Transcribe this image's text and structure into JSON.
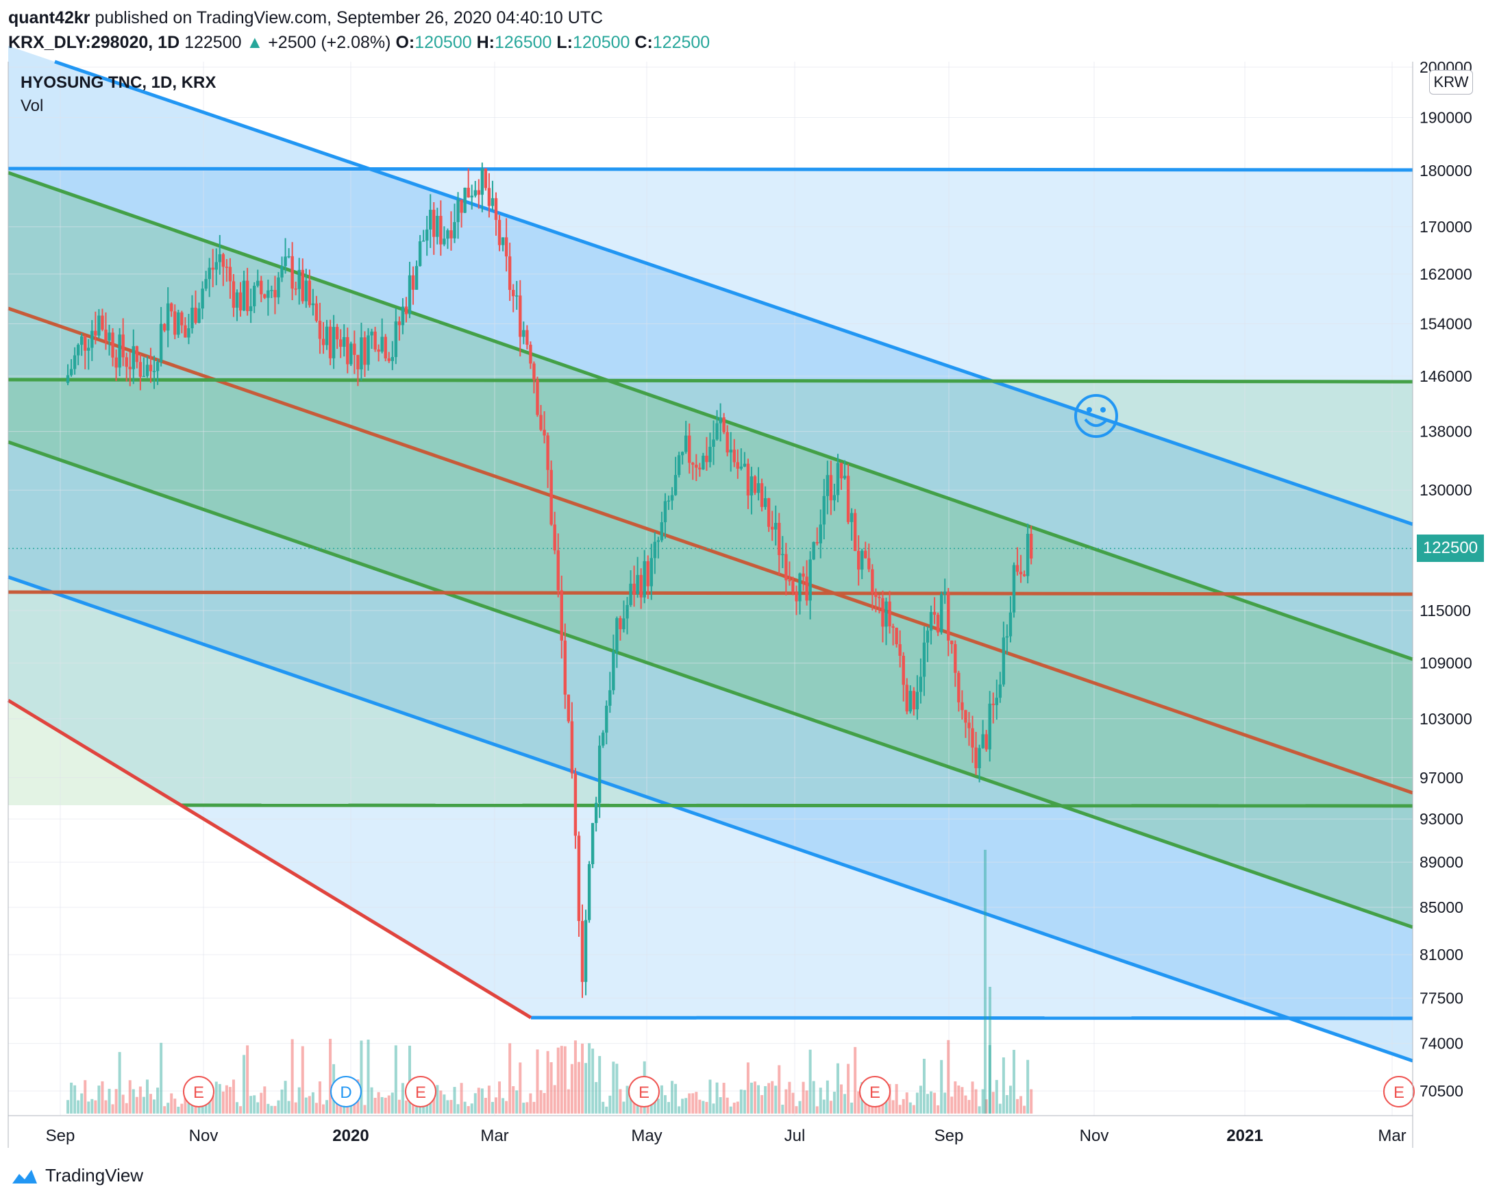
{
  "header": {
    "publisher": "quant42kr",
    "published_text": "published on TradingView.com, September 26, 2020 04:40:10 UTC",
    "symbol": "KRX_DLY:298020, 1D",
    "last": "122500",
    "change_arrow": "▲",
    "change": "+2500 (+2.08%)",
    "o_label": "O:",
    "o": "120500",
    "h_label": "H:",
    "h": "126500",
    "l_label": "L:",
    "l": "120500",
    "c_label": "C:",
    "c": "122500"
  },
  "legend": {
    "title": "HYOSUNG TNC, 1D, KRX",
    "indicator": "Vol"
  },
  "currency": "KRW",
  "last_price_tag": "122500",
  "footer": {
    "brand": "TradingView"
  },
  "colors": {
    "blue_line": "#2196f3",
    "green_line": "#43a047",
    "orange_line": "#c75b39",
    "red_line": "#e0443e",
    "up": "#26a69a",
    "down": "#ef5350"
  },
  "chart_data": {
    "type": "candlestick",
    "title": "HYOSUNG TNC, 1D, KRX",
    "y_scale": "log",
    "ylim": [
      68500,
      200000
    ],
    "y_ticks": [
      "200000",
      "190000",
      "180000",
      "170000",
      "162000",
      "154000",
      "146000",
      "138000",
      "130000",
      "122500",
      "115000",
      "109000",
      "103000",
      "97000",
      "93000",
      "89000",
      "85000",
      "81000",
      "77500",
      "74000",
      "70500"
    ],
    "x_ticks": [
      "Sep",
      "Nov",
      "2020",
      "Mar",
      "May",
      "Jul",
      "Sep",
      "Nov",
      "2021",
      "Mar"
    ],
    "x_tick_bold": [
      false,
      false,
      true,
      false,
      false,
      false,
      false,
      false,
      true,
      false
    ],
    "price_path": [
      [
        "2019-08-26",
        145000
      ],
      [
        "2019-09-02",
        151000
      ],
      [
        "2019-09-09",
        155000
      ],
      [
        "2019-09-16",
        150000
      ],
      [
        "2019-09-23",
        148000
      ],
      [
        "2019-09-30",
        147000
      ],
      [
        "2019-10-07",
        157000
      ],
      [
        "2019-10-14",
        152000
      ],
      [
        "2019-10-21",
        160000
      ],
      [
        "2019-10-28",
        165000
      ],
      [
        "2019-11-04",
        158000
      ],
      [
        "2019-11-11",
        158000
      ],
      [
        "2019-11-18",
        160000
      ],
      [
        "2019-11-25",
        163000
      ],
      [
        "2019-12-02",
        158000
      ],
      [
        "2019-12-09",
        151000
      ],
      [
        "2019-12-16",
        152000
      ],
      [
        "2019-12-23",
        149000
      ],
      [
        "2019-12-30",
        153000
      ],
      [
        "2020-01-06",
        150000
      ],
      [
        "2020-01-13",
        160000
      ],
      [
        "2020-01-20",
        170000
      ],
      [
        "2020-01-27",
        169000
      ],
      [
        "2020-02-03",
        175000
      ],
      [
        "2020-02-10",
        179000
      ],
      [
        "2020-02-17",
        170000
      ],
      [
        "2020-02-24",
        158000
      ],
      [
        "2020-03-02",
        150000
      ],
      [
        "2020-03-09",
        132000
      ],
      [
        "2020-03-16",
        106000
      ],
      [
        "2020-03-23",
        80000
      ],
      [
        "2020-03-30",
        100000
      ],
      [
        "2020-04-06",
        112000
      ],
      [
        "2020-04-13",
        118000
      ],
      [
        "2020-04-20",
        120000
      ],
      [
        "2020-04-27",
        128000
      ],
      [
        "2020-05-04",
        135000
      ],
      [
        "2020-05-11",
        134000
      ],
      [
        "2020-05-18",
        139000
      ],
      [
        "2020-05-25",
        133000
      ],
      [
        "2020-06-01",
        130000
      ],
      [
        "2020-06-08",
        125000
      ],
      [
        "2020-06-15",
        120000
      ],
      [
        "2020-06-22",
        116000
      ],
      [
        "2020-06-29",
        130000
      ],
      [
        "2020-07-06",
        132000
      ],
      [
        "2020-07-13",
        121000
      ],
      [
        "2020-07-20",
        116000
      ],
      [
        "2020-07-27",
        113000
      ],
      [
        "2020-08-03",
        104000
      ],
      [
        "2020-08-10",
        112000
      ],
      [
        "2020-08-17",
        116000
      ],
      [
        "2020-08-24",
        102000
      ],
      [
        "2020-08-31",
        99000
      ],
      [
        "2020-09-07",
        105000
      ],
      [
        "2020-09-14",
        120000
      ],
      [
        "2020-09-21",
        122500
      ]
    ],
    "volume_markers": [
      {
        "label": "E",
        "date": "2019-11-04",
        "color": "#ef5350"
      },
      {
        "label": "D",
        "date": "2019-12-27",
        "color": "#2196f3"
      },
      {
        "label": "E",
        "date": "2020-02-14",
        "color": "#ef5350"
      },
      {
        "label": "E",
        "date": "2020-05-14",
        "color": "#ef5350"
      },
      {
        "label": "E",
        "date": "2020-08-14",
        "color": "#ef5350"
      },
      {
        "label": "E",
        "date": "2021-02-26",
        "color": "#ef5350"
      }
    ]
  }
}
